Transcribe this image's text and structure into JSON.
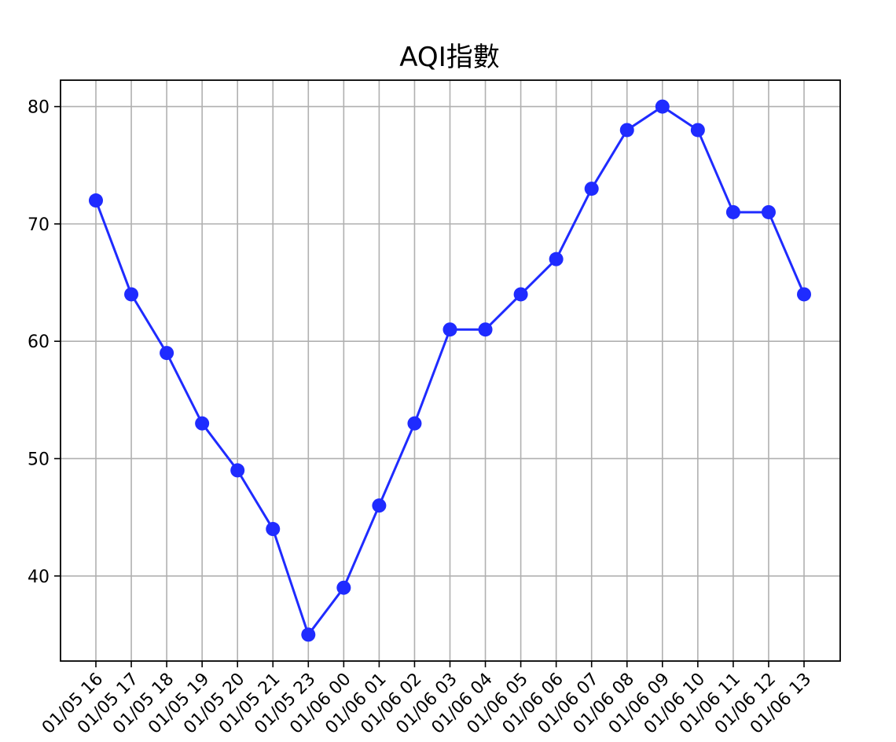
{
  "chart_data": {
    "type": "line",
    "title": "AQI指數",
    "xlabel": "",
    "ylabel": "",
    "categories": [
      "01/05 16",
      "01/05 17",
      "01/05 18",
      "01/05 19",
      "01/05 20",
      "01/05 21",
      "01/05 23",
      "01/06 00",
      "01/06 01",
      "01/06 02",
      "01/06 03",
      "01/06 04",
      "01/06 05",
      "01/06 06",
      "01/06 07",
      "01/06 08",
      "01/06 09",
      "01/06 10",
      "01/06 11",
      "01/06 12",
      "01/06 13"
    ],
    "tick_labels": [
      "01/05 16",
      "01/05 17",
      "01/05 18",
      "01/05 19",
      "01/05 20",
      "01/05 21",
      "01/05 23",
      "01/06 00",
      "01/06 01",
      "01/06 02",
      "01/06 03",
      "01/06 04",
      "01/06 05",
      "01/06 06",
      "01/06 07",
      "01/06 08",
      "01/06 09",
      "01/06 10",
      "01/06 11",
      "01/06 12",
      "01/06 13"
    ],
    "series": [
      {
        "values": [
          72,
          64,
          59,
          53,
          49,
          44,
          35,
          39,
          46,
          53,
          61,
          61,
          64,
          67,
          73,
          78,
          80,
          78,
          71,
          71,
          64
        ]
      }
    ],
    "yticks": [
      40,
      50,
      60,
      70,
      80
    ],
    "ylim": [
      32.75,
      82.25
    ],
    "grid": true,
    "line_color": "#1f2bff",
    "marker": "circle"
  }
}
